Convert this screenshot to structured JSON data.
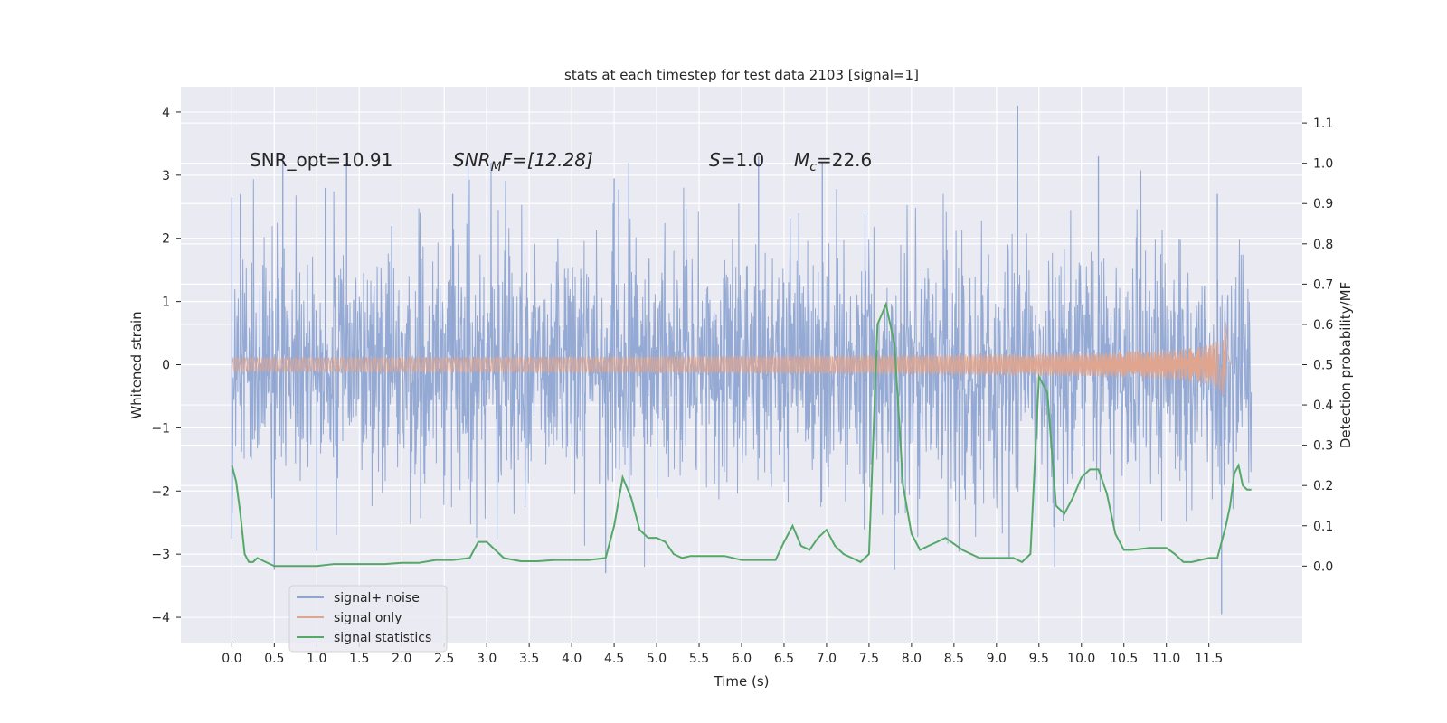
{
  "chart_data": {
    "type": "line",
    "title": "stats at each timestep for test data 2103 [signal=1]",
    "xlabel": "Time (s)",
    "ylabel": "Whitened strain",
    "ylabel_right": "Detection probability/MF",
    "xlim": [
      -0.6,
      12.6
    ],
    "ylim": [
      -4.4,
      4.4
    ],
    "ylim_right": [
      -0.19,
      1.19
    ],
    "x_ticks": [
      0.0,
      0.5,
      1.0,
      1.5,
      2.0,
      2.5,
      3.0,
      3.5,
      4.0,
      4.5,
      5.0,
      5.5,
      6.0,
      6.5,
      7.0,
      7.5,
      8.0,
      8.5,
      9.0,
      9.5,
      10.0,
      10.5,
      11.0,
      11.5
    ],
    "x_tick_labels": [
      "0.0",
      "0.5",
      "1.0",
      "1.5",
      "2.0",
      "2.5",
      "3.0",
      "3.5",
      "4.0",
      "4.5",
      "5.0",
      "5.5",
      "6.0",
      "6.5",
      "7.0",
      "7.5",
      "8.0",
      "8.5",
      "9.0",
      "9.5",
      "10.0",
      "10.5",
      "11.0",
      "11.5"
    ],
    "y_ticks": [
      -4,
      -3,
      -2,
      -1,
      0,
      1,
      2,
      3,
      4
    ],
    "y_tick_labels": [
      "−4",
      "−3",
      "−2",
      "−1",
      "0",
      "1",
      "2",
      "3",
      "4"
    ],
    "y_ticks_right": [
      0.0,
      0.1,
      0.2,
      0.3,
      0.4,
      0.5,
      0.6,
      0.7,
      0.8,
      0.9,
      1.0,
      1.1
    ],
    "y_tick_labels_right": [
      "0.0",
      "0.1",
      "0.2",
      "0.3",
      "0.4",
      "0.5",
      "0.6",
      "0.7",
      "0.8",
      "0.9",
      "1.0",
      "1.1"
    ],
    "grid": true,
    "legend_position": "lower-left",
    "annotations": {
      "snr_opt": "SNR_opt=10.91",
      "snr_mf_var": "SNR",
      "snr_mf_sub": "M",
      "snr_mf_rest": "F=[12.28]",
      "s_var": "S",
      "s_rest": "=1.0",
      "mc_var": "M",
      "mc_sub": "c",
      "mc_rest": "=22.6"
    },
    "series": [
      {
        "name": "signal+ noise",
        "color": "#8fa5d1",
        "kind": "noise",
        "t_range": [
          0.0,
          12.0
        ],
        "envelope_upper_peaks": [
          [
            0.0,
            2.65
          ],
          [
            0.1,
            2.7
          ],
          [
            0.6,
            3.3
          ],
          [
            1.1,
            2.8
          ],
          [
            1.35,
            3.3
          ],
          [
            2.6,
            2.7
          ],
          [
            4.5,
            2.95
          ],
          [
            6.2,
            3.3
          ],
          [
            6.95,
            3.2
          ],
          [
            9.25,
            4.1
          ],
          [
            10.2,
            3.3
          ],
          [
            11.6,
            2.7
          ]
        ],
        "envelope_lower_peaks": [
          [
            0.0,
            -2.75
          ],
          [
            0.5,
            -3.25
          ],
          [
            1.0,
            -2.95
          ],
          [
            4.4,
            -3.3
          ],
          [
            7.8,
            -3.25
          ],
          [
            9.15,
            -3.05
          ],
          [
            11.65,
            -3.95
          ]
        ]
      },
      {
        "name": "signal only",
        "color": "#e0a58f",
        "kind": "chirp",
        "t_range": [
          0.0,
          11.78
        ],
        "merger_time": 11.7,
        "peak_amplitude": 1.9
      },
      {
        "name": "signal statistics",
        "color": "#55a868",
        "axis": "right",
        "x": [
          0.0,
          0.05,
          0.1,
          0.15,
          0.2,
          0.25,
          0.3,
          0.4,
          0.5,
          0.6,
          0.8,
          1.0,
          1.2,
          1.4,
          1.6,
          1.8,
          2.0,
          2.2,
          2.4,
          2.6,
          2.8,
          2.9,
          3.0,
          3.1,
          3.2,
          3.4,
          3.6,
          3.8,
          4.0,
          4.2,
          4.4,
          4.5,
          4.6,
          4.7,
          4.8,
          4.9,
          5.0,
          5.1,
          5.2,
          5.3,
          5.4,
          5.6,
          5.8,
          6.0,
          6.2,
          6.4,
          6.5,
          6.6,
          6.7,
          6.8,
          6.9,
          7.0,
          7.1,
          7.2,
          7.3,
          7.4,
          7.5,
          7.6,
          7.7,
          7.8,
          7.9,
          8.0,
          8.1,
          8.2,
          8.3,
          8.4,
          8.6,
          8.8,
          9.0,
          9.2,
          9.3,
          9.4,
          9.5,
          9.6,
          9.7,
          9.8,
          9.9,
          10.0,
          10.1,
          10.2,
          10.3,
          10.4,
          10.5,
          10.6,
          10.8,
          11.0,
          11.1,
          11.2,
          11.3,
          11.4,
          11.5,
          11.6,
          11.7,
          11.75,
          11.8,
          11.85,
          11.9,
          11.95,
          12.0
        ],
        "values": [
          0.25,
          0.21,
          0.13,
          0.03,
          0.01,
          0.01,
          0.02,
          0.01,
          0.0,
          0.0,
          0.0,
          0.0,
          0.005,
          0.005,
          0.005,
          0.005,
          0.008,
          0.008,
          0.015,
          0.015,
          0.02,
          0.06,
          0.06,
          0.04,
          0.02,
          0.012,
          0.012,
          0.015,
          0.015,
          0.015,
          0.02,
          0.1,
          0.22,
          0.17,
          0.09,
          0.07,
          0.07,
          0.06,
          0.03,
          0.02,
          0.025,
          0.025,
          0.025,
          0.015,
          0.015,
          0.015,
          0.06,
          0.1,
          0.05,
          0.04,
          0.07,
          0.09,
          0.05,
          0.03,
          0.02,
          0.01,
          0.03,
          0.6,
          0.65,
          0.55,
          0.2,
          0.08,
          0.04,
          0.05,
          0.06,
          0.07,
          0.04,
          0.02,
          0.02,
          0.02,
          0.01,
          0.03,
          0.47,
          0.43,
          0.15,
          0.13,
          0.17,
          0.22,
          0.24,
          0.24,
          0.18,
          0.08,
          0.04,
          0.04,
          0.045,
          0.045,
          0.03,
          0.01,
          0.01,
          0.015,
          0.02,
          0.02,
          0.1,
          0.15,
          0.23,
          0.25,
          0.2,
          0.19,
          0.19
        ]
      }
    ]
  }
}
